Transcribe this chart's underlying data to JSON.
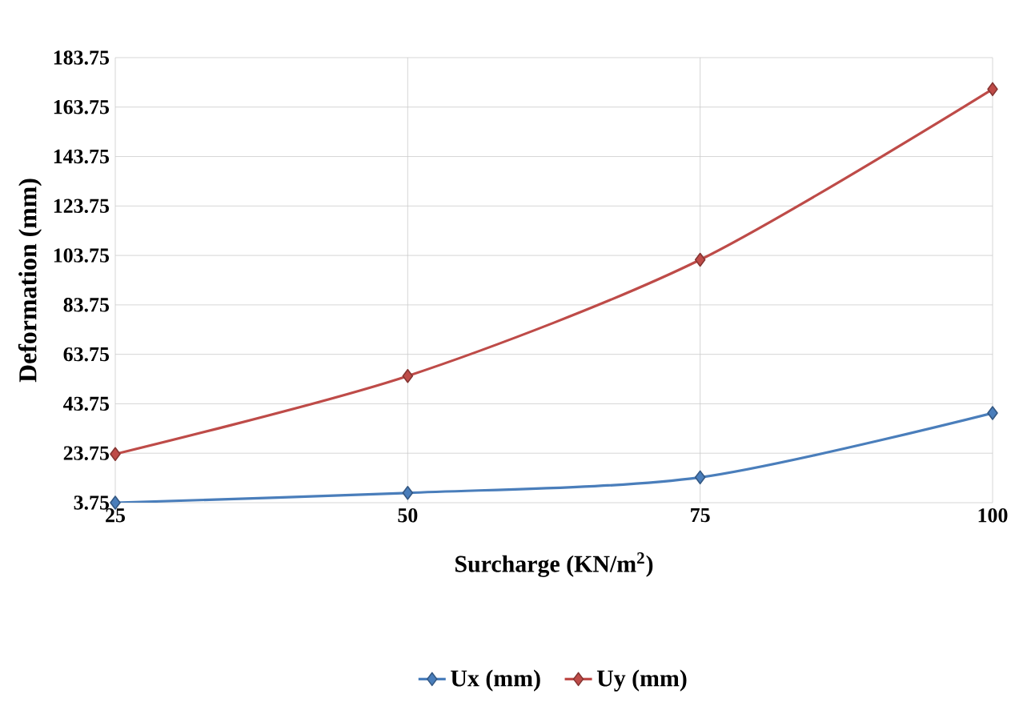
{
  "chart_data": {
    "type": "line",
    "xlabel": "Surcharge (KN/m$^{2}$)",
    "ylabel": "Deformation (mm)",
    "x": [
      25,
      50,
      75,
      100
    ],
    "xlim": [
      25,
      100
    ],
    "xticks": [
      25,
      50,
      75,
      100
    ],
    "ylim": [
      3.75,
      183.75
    ],
    "yticks": [
      3.75,
      23.75,
      43.75,
      63.75,
      83.75,
      103.75,
      123.75,
      143.75,
      163.75,
      183.75
    ],
    "series": [
      {
        "name": "Ux (mm)",
        "color": "#4a7ebb",
        "values": [
          3.75,
          7.7,
          14,
          40
        ]
      },
      {
        "name": "Uy (mm)",
        "color": "#be4b48",
        "values": [
          23.4,
          55,
          102,
          171
        ]
      }
    ],
    "grid": true,
    "legend": "bottom",
    "marker": "diamond",
    "line_style": "solid"
  }
}
